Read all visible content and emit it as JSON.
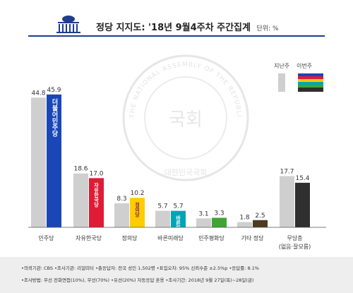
{
  "header": {
    "title": "정당 지지도: '18년 9월4주차 주간집계",
    "unit": "단위: %"
  },
  "legend": {
    "previous": "지난주",
    "current": "이번주"
  },
  "watermark": {
    "text": "THE NATIONAL ASSEMBLY OF THE REPUBLIC OF KOREA",
    "bottom_text": "대한민국국회",
    "center_text": "국회"
  },
  "chart_data": {
    "type": "bar",
    "categories": [
      "민주당",
      "자유한국당",
      "정의당",
      "바른미래당",
      "민주평화당",
      "기타 정당",
      "무당층"
    ],
    "category_sublabels": [
      "",
      "",
      "",
      "",
      "",
      "",
      "(없음·잘모름)"
    ],
    "series": [
      {
        "name": "지난주",
        "values": [
          44.8,
          18.6,
          8.3,
          5.7,
          3.1,
          1.8,
          17.7
        ]
      },
      {
        "name": "이번주",
        "values": [
          45.9,
          17.0,
          10.2,
          5.7,
          3.3,
          2.5,
          15.4
        ]
      }
    ],
    "party_logos": [
      "더불어민주당",
      "자유한국당",
      "정의당",
      "바른미래당",
      "민주평화당",
      "",
      ""
    ],
    "colors": {
      "previous": "#cfcfcf",
      "current": [
        "#1a46b8",
        "#e01b35",
        "#ffcc00",
        "#00a5b5",
        "#3fa535",
        "#4d3b22",
        "#2f2f2f"
      ],
      "title_line": "#1f3c8f"
    },
    "ylim": [
      0,
      50
    ],
    "grid": false,
    "legend_position": "top-right"
  },
  "footer": {
    "line1": "•의뢰기관: CBS •조사기관: 리얼미터 •총응답자: 전국 성인 1,502명 •표집오차: 95% 신뢰수준 ±2.5%p •응답률: 8.1%",
    "line2": "•조사방법: 무선 전화면접(10%), 무선(70%) •유선(20%) 자동응답 혼용 •조사기간: 2018년 9월 27일(목)~28일(금)"
  }
}
